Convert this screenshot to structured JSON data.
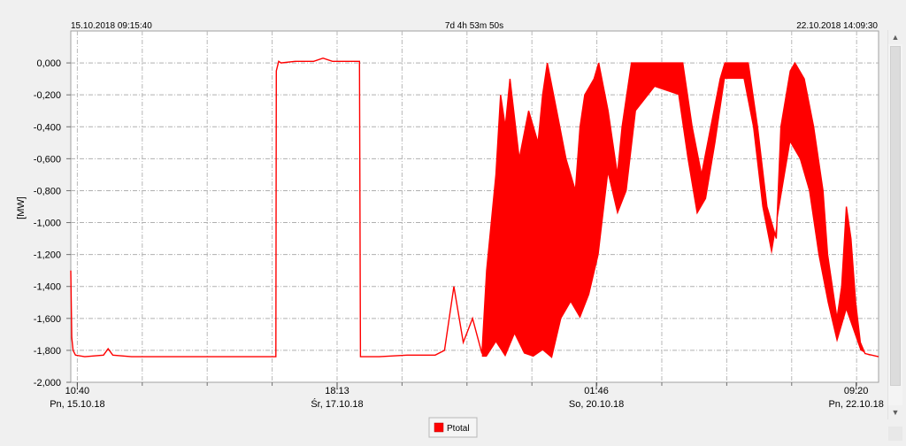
{
  "header": {
    "start": "15.10.2018 09:15:40",
    "duration": "7d 4h 53m 50s",
    "end": "22.10.2018 14:09:30"
  },
  "chart_data": {
    "type": "line",
    "title": "",
    "ylabel": "[MW]",
    "xlabel": "",
    "ylim": [
      -2.0,
      0.2
    ],
    "y_ticks": [
      0,
      -0.2,
      -0.4,
      -0.6,
      -0.8,
      -1.0,
      -1.2,
      -1.4,
      -1.6,
      -1.8,
      -2.0
    ],
    "y_tick_labels": [
      "0,000",
      "-0,200",
      "-0,400",
      "-0,600",
      "-0,800",
      "-1,000",
      "-1,200",
      "-1,400",
      "-1,600",
      "-1,800",
      "-2,000"
    ],
    "x_range_hours": [
      0,
      172.9
    ],
    "x_ticks": [
      {
        "h": 1.4,
        "time": "10:40",
        "date": "Pn, 15.10.18"
      },
      {
        "h": 57.0,
        "time": "18:13",
        "date": "Śr, 17.10.18"
      },
      {
        "h": 112.5,
        "time": "01:46",
        "date": "So, 20.10.18"
      },
      {
        "h": 168.1,
        "time": "09:20",
        "date": "Pn, 22.10.18"
      }
    ],
    "grid": true,
    "legend_position": "bottom-center",
    "series": [
      {
        "name": "Ptotal",
        "color": "#ff0000",
        "points": [
          [
            0.0,
            -1.3
          ],
          [
            0.2,
            -1.72
          ],
          [
            0.5,
            -1.8
          ],
          [
            1.0,
            -1.83
          ],
          [
            3,
            -1.84
          ],
          [
            7,
            -1.83
          ],
          [
            8,
            -1.79
          ],
          [
            9,
            -1.83
          ],
          [
            13,
            -1.84
          ],
          [
            20,
            -1.84
          ],
          [
            28,
            -1.84
          ],
          [
            35,
            -1.84
          ],
          [
            42,
            -1.84
          ],
          [
            43.9,
            -1.84
          ],
          [
            44.0,
            -0.05
          ],
          [
            44.5,
            0.01
          ],
          [
            45,
            0.0
          ],
          [
            48,
            0.01
          ],
          [
            52,
            0.01
          ],
          [
            54,
            0.03
          ],
          [
            56,
            0.01
          ],
          [
            60,
            0.01
          ],
          [
            61.8,
            0.01
          ],
          [
            62.0,
            -1.84
          ],
          [
            66,
            -1.84
          ],
          [
            72,
            -1.83
          ],
          [
            78,
            -1.83
          ],
          [
            80,
            -1.8
          ],
          [
            82,
            -1.4
          ],
          [
            84,
            -1.75
          ],
          [
            86,
            -1.6
          ],
          [
            88,
            -1.82
          ],
          [
            89,
            -1.3
          ],
          [
            91,
            -0.7
          ],
          [
            92,
            -0.2
          ],
          [
            93,
            -0.4
          ],
          [
            94,
            -0.1
          ],
          [
            96,
            -0.6
          ],
          [
            98,
            -0.3
          ],
          [
            100,
            -0.5
          ],
          [
            101,
            -0.2
          ],
          [
            102,
            0.0
          ],
          [
            104,
            -0.3
          ],
          [
            106,
            -0.6
          ],
          [
            108,
            -0.8
          ],
          [
            109,
            -0.4
          ],
          [
            110,
            -0.2
          ],
          [
            112,
            -0.1
          ],
          [
            113,
            0.0
          ],
          [
            115,
            -0.3
          ],
          [
            117,
            -0.7
          ],
          [
            118,
            -0.4
          ],
          [
            120,
            0.0
          ],
          [
            124,
            0.0
          ],
          [
            128,
            0.0
          ],
          [
            131,
            0.0
          ],
          [
            133,
            -0.4
          ],
          [
            135,
            -0.7
          ],
          [
            137,
            -0.4
          ],
          [
            139,
            -0.1
          ],
          [
            140,
            0.0
          ],
          [
            144,
            0.0
          ],
          [
            145,
            0.0
          ],
          [
            147,
            -0.4
          ],
          [
            149,
            -0.9
          ],
          [
            151,
            -1.1
          ],
          [
            152,
            -0.4
          ],
          [
            154,
            -0.05
          ],
          [
            155,
            0.0
          ],
          [
            157,
            -0.1
          ],
          [
            159,
            -0.4
          ],
          [
            161,
            -0.8
          ],
          [
            162,
            -1.2
          ],
          [
            164,
            -1.6
          ],
          [
            165,
            -1.4
          ],
          [
            166,
            -0.9
          ],
          [
            167,
            -1.1
          ],
          [
            168,
            -1.5
          ],
          [
            169,
            -1.75
          ],
          [
            170,
            -1.82
          ],
          [
            172.9,
            -1.84
          ]
        ]
      }
    ]
  }
}
